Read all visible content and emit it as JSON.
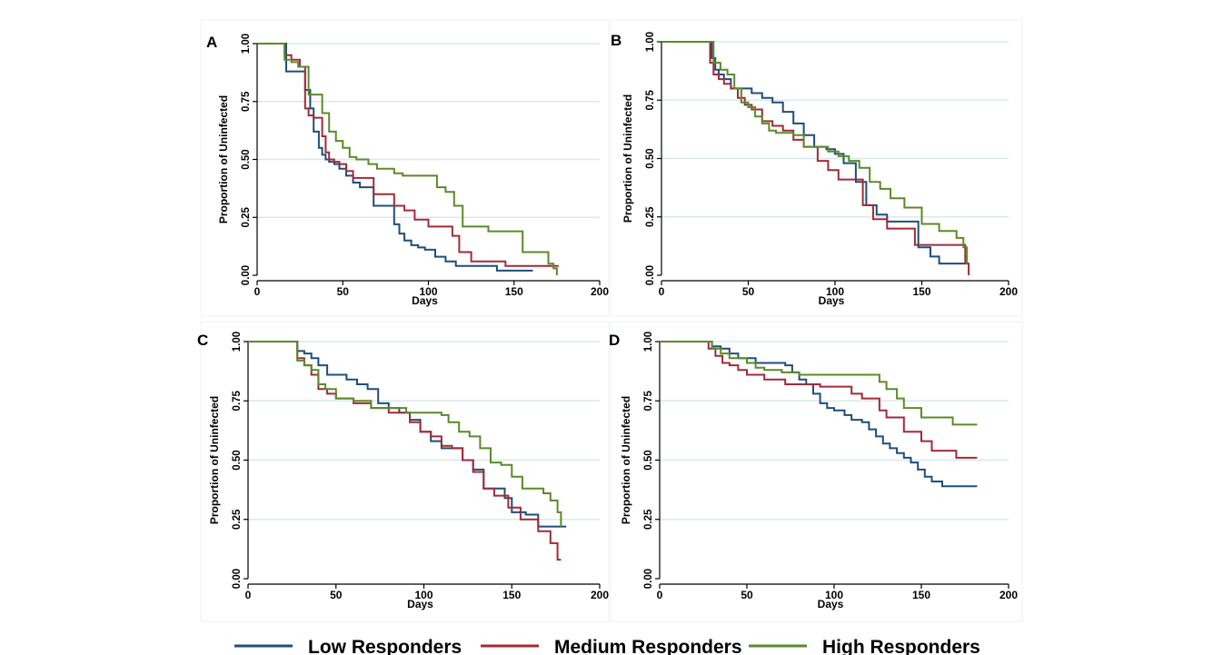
{
  "colors": {
    "low": "#1f4e79",
    "medium": "#a02b3a",
    "high": "#5b8a2a",
    "grid": "#dbe8ea",
    "frame": "#eef2f4"
  },
  "legend": [
    {
      "key": "low",
      "label": "Low Responders"
    },
    {
      "key": "medium",
      "label": "Medium Responders"
    },
    {
      "key": "high",
      "label": "High Responders"
    }
  ],
  "chart_data": [
    {
      "type": "line",
      "panel": "A",
      "xlabel": "Days",
      "ylabel": "Proportion of Uninfected",
      "xlim": [
        0,
        200
      ],
      "ylim": [
        0,
        1
      ],
      "xticks": [
        "0",
        "50",
        "100",
        "150",
        "200"
      ],
      "yticks": [
        "0.00",
        "0.25",
        "0.50",
        "0.75",
        "1.00"
      ],
      "grid": true,
      "series": [
        {
          "key": "low",
          "name": "Low Responders",
          "x": [
            0,
            14,
            17,
            24,
            28,
            31,
            33,
            36,
            38,
            40,
            42,
            45,
            48,
            52,
            56,
            60,
            64,
            68,
            72,
            76,
            80,
            83,
            86,
            90,
            94,
            98,
            104,
            110,
            116,
            120,
            130,
            140,
            161
          ],
          "y": [
            1.0,
            1.0,
            0.88,
            0.88,
            0.8,
            0.72,
            0.62,
            0.55,
            0.52,
            0.5,
            0.49,
            0.48,
            0.46,
            0.43,
            0.4,
            0.38,
            0.38,
            0.3,
            0.3,
            0.3,
            0.22,
            0.18,
            0.15,
            0.13,
            0.12,
            0.11,
            0.08,
            0.06,
            0.04,
            0.04,
            0.04,
            0.02,
            0.02
          ]
        },
        {
          "key": "medium",
          "name": "Medium Responders",
          "x": [
            0,
            13,
            16,
            20,
            25,
            28,
            30,
            33,
            36,
            38,
            40,
            42,
            45,
            48,
            52,
            56,
            62,
            68,
            74,
            80,
            86,
            92,
            100,
            106,
            114,
            118,
            125,
            145,
            160,
            176
          ],
          "y": [
            1.0,
            1.0,
            0.95,
            0.93,
            0.9,
            0.72,
            0.69,
            0.68,
            0.68,
            0.6,
            0.53,
            0.5,
            0.49,
            0.48,
            0.45,
            0.42,
            0.42,
            0.35,
            0.35,
            0.3,
            0.28,
            0.24,
            0.21,
            0.21,
            0.17,
            0.1,
            0.06,
            0.04,
            0.04,
            0.04
          ]
        },
        {
          "key": "high",
          "name": "High Responders",
          "x": [
            0,
            12,
            16,
            20,
            24,
            30,
            33,
            38,
            42,
            46,
            50,
            54,
            58,
            65,
            70,
            75,
            80,
            85,
            95,
            105,
            110,
            115,
            120,
            135,
            155,
            170,
            173,
            175
          ],
          "y": [
            1.0,
            1.0,
            0.93,
            0.92,
            0.9,
            0.78,
            0.78,
            0.7,
            0.62,
            0.58,
            0.55,
            0.51,
            0.5,
            0.48,
            0.46,
            0.46,
            0.44,
            0.43,
            0.43,
            0.38,
            0.36,
            0.3,
            0.21,
            0.19,
            0.1,
            0.05,
            0.03,
            0.0
          ]
        }
      ]
    },
    {
      "type": "line",
      "panel": "B",
      "xlabel": "Days",
      "ylabel": "Proportion of Uninfected",
      "xlim": [
        0,
        200
      ],
      "ylim": [
        0,
        1
      ],
      "xticks": [
        "0",
        "50",
        "100",
        "150",
        "200"
      ],
      "yticks": [
        "0.00",
        "0.25",
        "0.50",
        "0.75",
        "1.00"
      ],
      "grid": true,
      "series": [
        {
          "key": "low",
          "name": "Low Responders",
          "x": [
            0,
            27,
            29,
            31,
            33,
            36,
            40,
            45,
            52,
            58,
            64,
            70,
            76,
            82,
            88,
            95,
            100,
            105,
            112,
            118,
            124,
            130,
            140,
            148,
            155,
            160,
            175
          ],
          "y": [
            1.0,
            1.0,
            0.93,
            0.88,
            0.86,
            0.84,
            0.8,
            0.8,
            0.78,
            0.76,
            0.74,
            0.7,
            0.65,
            0.6,
            0.55,
            0.54,
            0.52,
            0.48,
            0.4,
            0.3,
            0.26,
            0.23,
            0.23,
            0.12,
            0.08,
            0.05,
            0.05
          ]
        },
        {
          "key": "medium",
          "name": "Medium Responders",
          "x": [
            0,
            26,
            28,
            30,
            33,
            36,
            40,
            44,
            48,
            52,
            58,
            64,
            70,
            76,
            82,
            90,
            96,
            102,
            110,
            116,
            122,
            130,
            138,
            146,
            152,
            175,
            177
          ],
          "y": [
            1.0,
            1.0,
            0.91,
            0.86,
            0.84,
            0.82,
            0.8,
            0.76,
            0.73,
            0.71,
            0.66,
            0.64,
            0.62,
            0.58,
            0.55,
            0.49,
            0.45,
            0.41,
            0.41,
            0.3,
            0.24,
            0.2,
            0.2,
            0.13,
            0.13,
            0.05,
            0.0
          ]
        },
        {
          "key": "high",
          "name": "High Responders",
          "x": [
            0,
            27,
            30,
            34,
            38,
            42,
            46,
            50,
            54,
            58,
            62,
            66,
            70,
            76,
            82,
            90,
            96,
            102,
            108,
            114,
            120,
            126,
            132,
            140,
            150,
            160,
            170,
            174,
            176
          ],
          "y": [
            1.0,
            1.0,
            0.91,
            0.88,
            0.86,
            0.8,
            0.74,
            0.72,
            0.68,
            0.65,
            0.62,
            0.61,
            0.61,
            0.6,
            0.55,
            0.55,
            0.53,
            0.51,
            0.49,
            0.46,
            0.4,
            0.37,
            0.33,
            0.29,
            0.22,
            0.19,
            0.16,
            0.12,
            0.05
          ]
        }
      ]
    },
    {
      "type": "line",
      "panel": "C",
      "xlabel": "Days",
      "ylabel": "Proportion of Uninfected",
      "xlim": [
        0,
        200
      ],
      "ylim": [
        0,
        1
      ],
      "xticks": [
        "0",
        "50",
        "100",
        "150",
        "200"
      ],
      "yticks": [
        "0.00",
        "0.25",
        "0.50",
        "0.75",
        "1.00"
      ],
      "grid": true,
      "series": [
        {
          "key": "low",
          "name": "Low Responders",
          "x": [
            0,
            26,
            28,
            32,
            36,
            40,
            45,
            50,
            56,
            62,
            68,
            74,
            80,
            86,
            92,
            98,
            104,
            110,
            116,
            122,
            128,
            134,
            140,
            146,
            150,
            158,
            165,
            175,
            181
          ],
          "y": [
            1.0,
            1.0,
            0.96,
            0.95,
            0.93,
            0.9,
            0.86,
            0.86,
            0.84,
            0.82,
            0.8,
            0.74,
            0.72,
            0.7,
            0.67,
            0.62,
            0.58,
            0.55,
            0.55,
            0.5,
            0.46,
            0.38,
            0.38,
            0.34,
            0.28,
            0.27,
            0.22,
            0.22,
            0.22
          ]
        },
        {
          "key": "medium",
          "name": "Medium Responders",
          "x": [
            0,
            25,
            28,
            32,
            36,
            40,
            45,
            50,
            60,
            70,
            80,
            86,
            92,
            98,
            104,
            110,
            116,
            122,
            128,
            134,
            140,
            148,
            155,
            165,
            172,
            176,
            178
          ],
          "y": [
            1.0,
            1.0,
            0.93,
            0.9,
            0.86,
            0.8,
            0.78,
            0.76,
            0.74,
            0.72,
            0.7,
            0.7,
            0.66,
            0.62,
            0.6,
            0.56,
            0.55,
            0.5,
            0.45,
            0.38,
            0.35,
            0.3,
            0.25,
            0.2,
            0.15,
            0.08,
            0.08
          ]
        },
        {
          "key": "high",
          "name": "High Responders",
          "x": [
            0,
            25,
            28,
            32,
            36,
            40,
            44,
            50,
            60,
            70,
            80,
            90,
            100,
            110,
            114,
            120,
            126,
            132,
            138,
            144,
            150,
            156,
            162,
            168,
            172,
            176,
            178
          ],
          "y": [
            1.0,
            1.0,
            0.92,
            0.9,
            0.88,
            0.82,
            0.8,
            0.76,
            0.75,
            0.72,
            0.72,
            0.7,
            0.7,
            0.69,
            0.66,
            0.62,
            0.6,
            0.55,
            0.49,
            0.48,
            0.43,
            0.38,
            0.38,
            0.36,
            0.33,
            0.28,
            0.22
          ]
        }
      ]
    },
    {
      "type": "line",
      "panel": "D",
      "xlabel": "Days",
      "ylabel": "Proportion of Uninfected",
      "xlim": [
        0,
        200
      ],
      "ylim": [
        0,
        1
      ],
      "xticks": [
        "0",
        "50",
        "100",
        "150",
        "200"
      ],
      "yticks": [
        "0.00",
        "0.25",
        "0.50",
        "0.75",
        "1.00"
      ],
      "grid": true,
      "series": [
        {
          "key": "low",
          "name": "Low Responders",
          "x": [
            0,
            25,
            30,
            35,
            40,
            45,
            55,
            62,
            68,
            72,
            76,
            80,
            84,
            88,
            92,
            96,
            100,
            106,
            110,
            116,
            120,
            124,
            128,
            132,
            136,
            140,
            144,
            148,
            152,
            156,
            162,
            182
          ],
          "y": [
            1.0,
            1.0,
            0.98,
            0.97,
            0.95,
            0.93,
            0.91,
            0.91,
            0.91,
            0.9,
            0.87,
            0.84,
            0.82,
            0.78,
            0.74,
            0.72,
            0.71,
            0.69,
            0.67,
            0.66,
            0.63,
            0.6,
            0.57,
            0.55,
            0.53,
            0.51,
            0.49,
            0.46,
            0.43,
            0.41,
            0.39,
            0.39
          ]
        },
        {
          "key": "medium",
          "name": "Medium Responders",
          "x": [
            0,
            25,
            28,
            32,
            36,
            40,
            45,
            50,
            60,
            72,
            80,
            86,
            92,
            98,
            104,
            110,
            116,
            120,
            126,
            130,
            140,
            146,
            150,
            156,
            162,
            170,
            182
          ],
          "y": [
            1.0,
            1.0,
            0.97,
            0.94,
            0.91,
            0.9,
            0.88,
            0.86,
            0.84,
            0.82,
            0.82,
            0.82,
            0.81,
            0.81,
            0.81,
            0.78,
            0.76,
            0.76,
            0.71,
            0.68,
            0.62,
            0.62,
            0.58,
            0.54,
            0.54,
            0.51,
            0.51
          ]
        },
        {
          "key": "high",
          "name": "High Responders",
          "x": [
            0,
            25,
            30,
            35,
            40,
            50,
            55,
            60,
            70,
            80,
            90,
            100,
            110,
            120,
            126,
            130,
            136,
            140,
            146,
            150,
            156,
            162,
            168,
            182
          ],
          "y": [
            1.0,
            1.0,
            0.97,
            0.95,
            0.93,
            0.91,
            0.89,
            0.88,
            0.87,
            0.86,
            0.86,
            0.86,
            0.86,
            0.86,
            0.83,
            0.8,
            0.76,
            0.72,
            0.72,
            0.68,
            0.68,
            0.68,
            0.65,
            0.65
          ]
        }
      ]
    }
  ]
}
